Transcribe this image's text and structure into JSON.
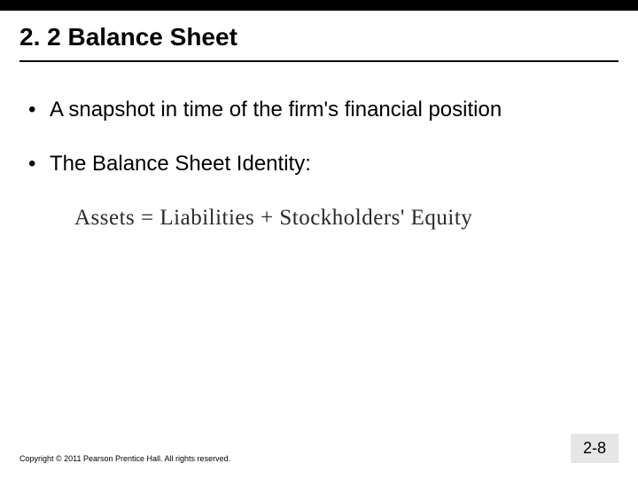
{
  "slide": {
    "title": "2. 2 Balance Sheet",
    "bullets": [
      "A snapshot in time of the firm's financial position",
      "The Balance Sheet Identity:"
    ],
    "equation": "Assets  =  Liabilities  +  Stockholders' Equity",
    "copyright": "Copyright © 2011 Pearson Prentice Hall. All rights reserved.",
    "page_number": "2-8"
  },
  "style": {
    "background_color": "#ffffff",
    "top_bar_color": "#000000",
    "title_fontsize": 28,
    "title_color": "#000000",
    "body_fontsize": 24,
    "body_color": "#000000",
    "equation_fontsize": 25,
    "equation_font": "Times New Roman",
    "equation_color": "#2a2a2a",
    "copyright_fontsize": 9,
    "page_number_fontsize": 18,
    "page_number_bg": "#e6e6e6",
    "font_family": "Verdana"
  }
}
